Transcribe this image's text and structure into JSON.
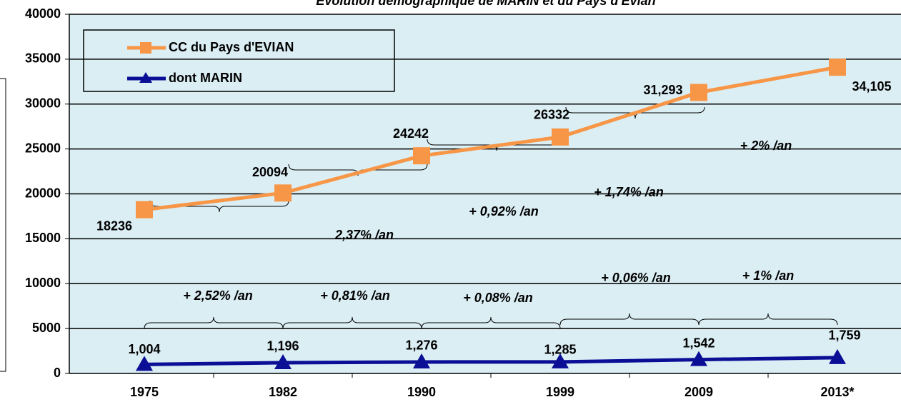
{
  "chart_data": {
    "type": "line",
    "title": "Evolution démographique de MARIN et du Pays d'Evian",
    "categories": [
      "1975",
      "1982",
      "1990",
      "1999",
      "2009",
      "2013*"
    ],
    "series": [
      {
        "name": "CC du Pays d'EVIAN",
        "color": "#f79646",
        "values": [
          18236,
          20094,
          24242,
          26332,
          31293,
          34105
        ],
        "value_labels": [
          "18236",
          "20094",
          "24242",
          "26332",
          "31,293",
          "34,105"
        ]
      },
      {
        "name": "dont MARIN",
        "color": "#0a0f96",
        "values": [
          1004,
          1196,
          1276,
          1285,
          1542,
          1759
        ],
        "value_labels": [
          "1,004",
          "1,196",
          "1,276",
          "1,285",
          "1,542",
          "1,759"
        ]
      }
    ],
    "annotations": [
      "2,37% /an",
      "+ 0,92% /an",
      "+ 1,74% /an",
      "+ 2% /an",
      "+ 2,52% /an",
      "+ 0,81% /an",
      "+ 0,08% /an",
      "+ 0,06% /an",
      "+ 1% /an"
    ],
    "ylim": [
      0,
      40000
    ],
    "yticks": [
      0,
      5000,
      10000,
      15000,
      20000,
      25000,
      30000,
      35000,
      40000
    ],
    "grid": true,
    "legend": "upper left"
  }
}
